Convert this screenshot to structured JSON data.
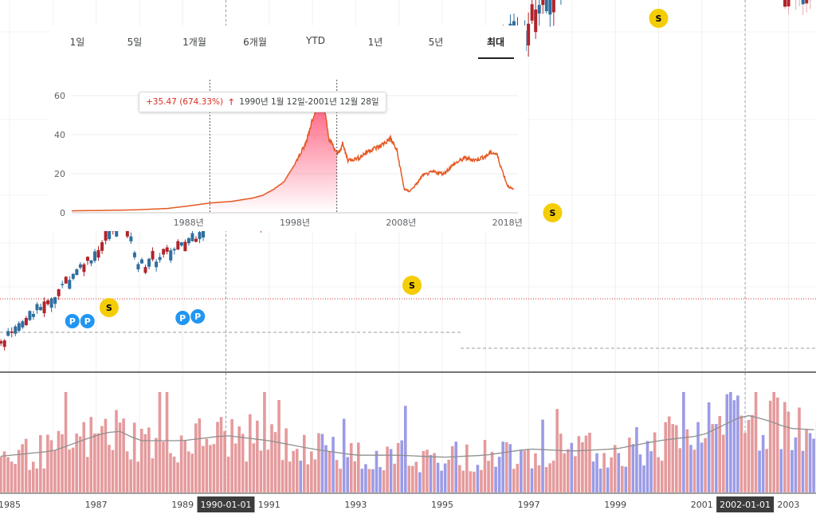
{
  "colors": {
    "up": "#b0242b",
    "down": "#2f6f9f",
    "vol_up": "#e59a9c",
    "vol_down": "#9b9be6",
    "line": "#e45a25",
    "marker_s": "#f5cd06",
    "marker_p": "#2196f3",
    "ref_line": "#d32f2f"
  },
  "main_chart": {
    "x_axis_labels": [
      "1985",
      "1987",
      "1989",
      "1991",
      "1993",
      "1995",
      "1997",
      "1999",
      "2001",
      "2003"
    ],
    "crosshair_dates": [
      "1990-01-01",
      "2002-01-01"
    ],
    "markers": [
      {
        "type": "P",
        "label": "P",
        "year": 1986.45
      },
      {
        "type": "P",
        "label": "P",
        "year": 1986.8
      },
      {
        "type": "S",
        "label": "S",
        "year": 1987.3
      },
      {
        "type": "P",
        "label": "P",
        "year": 1989.0
      },
      {
        "type": "P",
        "label": "P",
        "year": 1989.35
      },
      {
        "type": "S",
        "label": "S",
        "year": 1994.3
      },
      {
        "type": "S",
        "label": "S",
        "year": 1997.55
      },
      {
        "type": "S",
        "label": "S",
        "year": 2000.0
      }
    ]
  },
  "mini_chart": {
    "tabs": [
      "1일",
      "5일",
      "1개월",
      "6개월",
      "YTD",
      "1년",
      "5년",
      "최대"
    ],
    "active_tab": "최대",
    "tooltip": {
      "change": "+35.47 (674.33%)",
      "arrow": "🡑",
      "range": "1990년 1월 12일-2001년 12월 28일"
    }
  },
  "chart_data": [
    {
      "type": "line",
      "title": "최대",
      "x_ticks": [
        "1988년",
        "1998년",
        "2008년",
        "2018년"
      ],
      "y_ticks": [
        "0",
        "20",
        "40",
        "60"
      ],
      "ylim": [
        0,
        60
      ],
      "xlim": [
        1977,
        2019
      ],
      "series": [
        {
          "name": "price",
          "x": [
            1977,
            1980,
            1983,
            1986,
            1988,
            1990,
            1992,
            1994,
            1995,
            1996,
            1997,
            1998,
            1999,
            1999.5,
            2000,
            2000.4,
            2000.8,
            2001.2,
            2001.6,
            2002,
            2002.5,
            2003,
            2004,
            2005,
            2006,
            2007,
            2007.6,
            2008.3,
            2008.8,
            2009.5,
            2010,
            2011,
            2012,
            2013,
            2014,
            2015,
            2016,
            2016.5,
            2017,
            2017.5,
            2018,
            2018.5
          ],
          "y": [
            1,
            1.2,
            1.5,
            2.2,
            3.5,
            5,
            5.8,
            7.5,
            9,
            12,
            16,
            25,
            35,
            45,
            55,
            58,
            52,
            38,
            34,
            30,
            35,
            27,
            28,
            32,
            34,
            38,
            32,
            12,
            11,
            15,
            19,
            21,
            20,
            25,
            28,
            27,
            29,
            31,
            30,
            22,
            14,
            12
          ]
        }
      ]
    },
    {
      "type": "candlestick",
      "title": "",
      "x_ticks": [
        "1985",
        "1987",
        "1989",
        "1991",
        "1993",
        "1995",
        "1997",
        "1999",
        "2001",
        "2003"
      ],
      "xlim": [
        1984.8,
        2003.8
      ],
      "series": [
        {
          "name": "price",
          "x": [
            1984.8,
            1986,
            1987,
            1987.6,
            1988,
            1989,
            1990,
            1990.8,
            1991,
            1992,
            1993,
            1994,
            1995,
            1996,
            1997,
            1998,
            1999,
            2000,
            2000.5,
            2001,
            2001.5,
            2002,
            2002.5,
            2003,
            2003.8
          ],
          "y": [
            1.0,
            1.4,
            2.0,
            2.6,
            1.8,
            2.1,
            2.8,
            2.5,
            3.0,
            3.6,
            4.6,
            5.9,
            6.1,
            8.5,
            11.5,
            17.5,
            25.0,
            40.0,
            46.5,
            34.0,
            29.0,
            26.0,
            21.0,
            15.5,
            16.0
          ]
        }
      ]
    },
    {
      "type": "bar",
      "title": "volume",
      "x_ticks": [
        "1985",
        "1987",
        "1989",
        "1991",
        "1993",
        "1995",
        "1997",
        "1999",
        "2001",
        "2003"
      ],
      "series": [
        {
          "name": "volume_level",
          "x": [
            1984.8,
            1986,
            1987,
            1987.5,
            1988,
            1989,
            1990,
            1991,
            1992,
            1993,
            1994,
            1995,
            1996,
            1997,
            1998,
            1999,
            2000,
            2001,
            2002,
            2002.5,
            2003,
            2003.8
          ],
          "y": [
            0.35,
            0.4,
            0.55,
            0.6,
            0.5,
            0.5,
            0.55,
            0.5,
            0.42,
            0.36,
            0.36,
            0.34,
            0.36,
            0.42,
            0.4,
            0.42,
            0.5,
            0.55,
            0.75,
            0.7,
            0.62,
            0.6
          ]
        }
      ]
    }
  ]
}
